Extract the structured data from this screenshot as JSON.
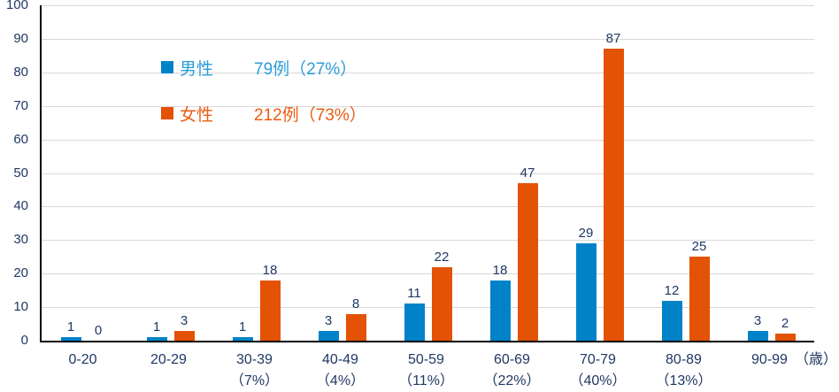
{
  "chart_data": {
    "type": "bar",
    "title": "",
    "categories": [
      "0-20",
      "20-29",
      "30-39",
      "40-49",
      "50-59",
      "60-69",
      "70-79",
      "80-89",
      "90-99"
    ],
    "category_percents": [
      "",
      "",
      "（7%）",
      "（4%）",
      "（11%）",
      "（22%）",
      "（40%）",
      "（13%）",
      ""
    ],
    "series": [
      {
        "name": "男性",
        "label": "79例（27%）",
        "values": [
          1,
          1,
          1,
          3,
          11,
          18,
          29,
          12,
          3
        ],
        "color": "#0082C8",
        "text_color": "#2B9CD8"
      },
      {
        "name": "女性",
        "label": "212例（73%）",
        "values": [
          0,
          3,
          18,
          8,
          22,
          47,
          87,
          25,
          2
        ],
        "color": "#E35205",
        "text_color": "#EB5C10"
      }
    ],
    "xlabel_unit": "（歳）",
    "ylabel": "",
    "ylim": [
      0,
      100
    ],
    "ytick_step": 10,
    "grid": true,
    "legend_position": "inside-top-left",
    "value_labels": true
  },
  "colors": {
    "axis_text": "#1F3864",
    "gridline": "#D9D9D9",
    "axis_line": "#000000",
    "background": "#FFFFFF"
  }
}
